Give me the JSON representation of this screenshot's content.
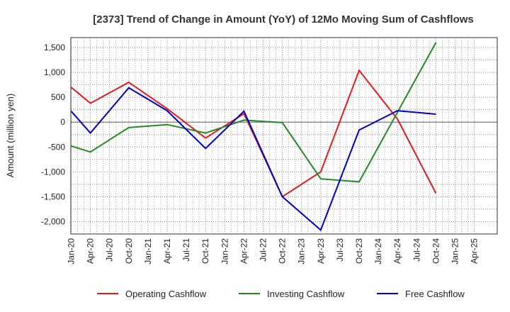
{
  "chart_data": {
    "type": "line",
    "title": "[2373]  Trend of Change in Amount (YoY) of 12Mo Moving Sum of Cashflows",
    "xlabel": "",
    "ylabel": "Amount (million yen)",
    "ylim": [
      -2250,
      1700
    ],
    "yticks": [
      1500,
      1000,
      500,
      0,
      -500,
      -1000,
      -1500,
      -2000
    ],
    "ytick_labels": [
      "1,500",
      "1,000",
      "500",
      "0",
      "-500",
      "-1,000",
      "-1,500",
      "-2,000"
    ],
    "categories": [
      "Jan-20",
      "Apr-20",
      "Jul-20",
      "Oct-20",
      "Jan-21",
      "Apr-21",
      "Jul-21",
      "Oct-21",
      "Jan-22",
      "Apr-22",
      "Jul-22",
      "Oct-22",
      "Jan-23",
      "Apr-23",
      "Jul-23",
      "Oct-23",
      "Jan-24",
      "Apr-24",
      "Jul-24",
      "Oct-24",
      "Jan-25",
      "Apr-25"
    ],
    "grid": true,
    "legend_position": "bottom",
    "series": [
      {
        "name": "Operating Cashflow",
        "color": "#e31a1c",
        "points": [
          {
            "x": 0,
            "y": 700
          },
          {
            "x": 1,
            "y": 380
          },
          {
            "x": 3,
            "y": 800
          },
          {
            "x": 5,
            "y": 270
          },
          {
            "x": 7,
            "y": -320
          },
          {
            "x": 9,
            "y": 170
          },
          {
            "x": 11,
            "y": -1500
          },
          {
            "x": 13,
            "y": -1000
          },
          {
            "x": 15,
            "y": 1040
          },
          {
            "x": 17,
            "y": 60
          },
          {
            "x": 19,
            "y": -1430
          }
        ]
      },
      {
        "name": "Investing Cashflow",
        "color": "#228b22",
        "points": [
          {
            "x": 0,
            "y": -480
          },
          {
            "x": 1,
            "y": -600
          },
          {
            "x": 3,
            "y": -110
          },
          {
            "x": 5,
            "y": -50
          },
          {
            "x": 7,
            "y": -220
          },
          {
            "x": 9,
            "y": 40
          },
          {
            "x": 11,
            "y": -10
          },
          {
            "x": 13,
            "y": -1140
          },
          {
            "x": 15,
            "y": -1200
          },
          {
            "x": 17,
            "y": 200
          },
          {
            "x": 19,
            "y": 1600
          }
        ]
      },
      {
        "name": "Free Cashflow",
        "color": "#0000cc",
        "points": [
          {
            "x": 0,
            "y": 220
          },
          {
            "x": 1,
            "y": -220
          },
          {
            "x": 3,
            "y": 690
          },
          {
            "x": 5,
            "y": 230
          },
          {
            "x": 7,
            "y": -530
          },
          {
            "x": 9,
            "y": 220
          },
          {
            "x": 11,
            "y": -1500
          },
          {
            "x": 13,
            "y": -2170
          },
          {
            "x": 15,
            "y": -160
          },
          {
            "x": 17,
            "y": 230
          },
          {
            "x": 19,
            "y": 160
          }
        ]
      }
    ]
  }
}
